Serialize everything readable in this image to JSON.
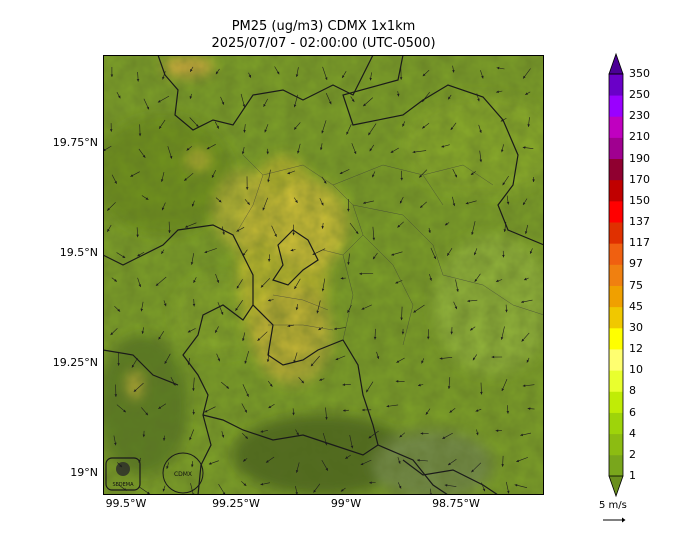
{
  "title": {
    "line1": "PM25 (ug/m3) CDMX 1x1km",
    "line2": "2025/07/07 - 02:00:00 (UTC-0500)"
  },
  "axes": {
    "lat_labels": [
      "19.75°N",
      "19.5°N",
      "19.25°N",
      "19°N"
    ],
    "lon_labels": [
      "99.5°W",
      "99.25°W",
      "99°W",
      "98.75°W"
    ]
  },
  "colorbar": {
    "levels": [
      "1",
      "2",
      "4",
      "6",
      "8",
      "10",
      "12",
      "30",
      "45",
      "75",
      "97",
      "117",
      "137",
      "150",
      "170",
      "190",
      "210",
      "230",
      "250",
      "350"
    ],
    "colors": [
      "#6a8f1e",
      "#79a61c",
      "#8cbc12",
      "#9ed40a",
      "#c0ec06",
      "#e9ff2e",
      "#ffff70",
      "#ffff00",
      "#f0c800",
      "#f0a000",
      "#f08010",
      "#f06010",
      "#e03000",
      "#ff0000",
      "#c00000",
      "#900030",
      "#a00090",
      "#c000c0",
      "#9a00ff",
      "#6a00c8",
      "#4b0096"
    ]
  },
  "wind_legend": {
    "label": "5 m/s"
  },
  "logos": {
    "left": "SEDEMA",
    "right": "CDMX"
  }
}
